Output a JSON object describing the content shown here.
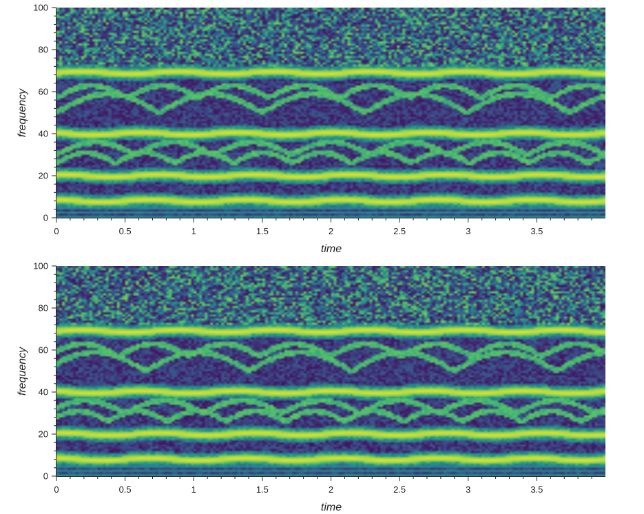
{
  "colors": {
    "colormap": [
      "#440154",
      "#3b528b",
      "#21918c",
      "#5ec962",
      "#fde725"
    ],
    "axis": "#222222",
    "background": "#ffffff"
  },
  "chart_data": [
    {
      "type": "heatmap",
      "title": "",
      "xlabel": "time",
      "ylabel": "frequency",
      "xlim": [
        0,
        4
      ],
      "ylim": [
        0,
        100
      ],
      "x_ticks": [
        0,
        0.5,
        1,
        1.5,
        2,
        2.5,
        3,
        3.5
      ],
      "x_tick_labels": [
        "0",
        "0.5",
        "1",
        "1.5",
        "2",
        "2.5",
        "3",
        "3.5"
      ],
      "y_ticks": [
        0,
        20,
        40,
        60,
        80,
        100
      ],
      "y_tick_labels": [
        "0",
        "20",
        "40",
        "60",
        "80",
        "100"
      ],
      "colormap": "viridis",
      "bright_bands_hz": [
        8,
        20,
        40,
        69
      ],
      "grid": false
    },
    {
      "type": "heatmap",
      "title": "",
      "xlabel": "time",
      "ylabel": "frequency",
      "xlim": [
        0,
        4
      ],
      "ylim": [
        0,
        100
      ],
      "x_ticks": [
        0,
        0.5,
        1,
        1.5,
        2,
        2.5,
        3,
        3.5
      ],
      "x_tick_labels": [
        "0",
        "0.5",
        "1",
        "1.5",
        "2",
        "2.5",
        "3",
        "3.5"
      ],
      "y_ticks": [
        0,
        20,
        40,
        60,
        80,
        100
      ],
      "y_tick_labels": [
        "0",
        "20",
        "40",
        "60",
        "80",
        "100"
      ],
      "colormap": "viridis",
      "bright_bands_hz": [
        8,
        20,
        40,
        69
      ],
      "grid": false
    }
  ]
}
